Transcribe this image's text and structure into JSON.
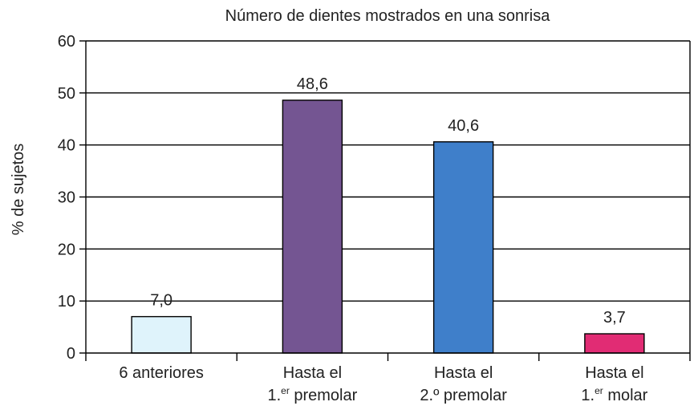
{
  "chart_data": {
    "type": "bar",
    "title": "Número de dientes mostrados en una sonrisa",
    "xlabel": "",
    "ylabel": "% de sujetos",
    "ylim": [
      0,
      60
    ],
    "yticks": [
      0,
      10,
      20,
      30,
      40,
      50,
      60
    ],
    "grid": true,
    "categories": [
      {
        "line1": "6 anteriores",
        "line2_pre": "",
        "line2_sup": "",
        "line2_post": ""
      },
      {
        "line1": "Hasta el",
        "line2_pre": "1.",
        "line2_sup": "er",
        "line2_post": " premolar"
      },
      {
        "line1": "Hasta el",
        "line2_pre": "2.º premolar",
        "line2_sup": "",
        "line2_post": ""
      },
      {
        "line1": "Hasta el",
        "line2_pre": "1.",
        "line2_sup": "er",
        "line2_post": " molar"
      }
    ],
    "values": [
      7.0,
      48.6,
      40.6,
      3.7
    ],
    "value_labels": [
      "7,0",
      "48,6",
      "40,6",
      "3,7"
    ],
    "colors": [
      "#dff3fb",
      "#745592",
      "#3f7fca",
      "#e12c74"
    ]
  }
}
